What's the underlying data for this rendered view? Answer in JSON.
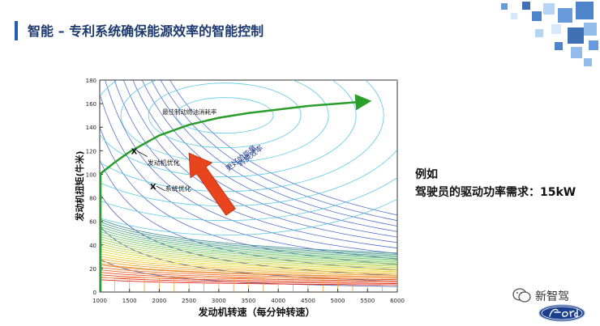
{
  "slide": {
    "title": "智能 – 专利系统确保能源效率的智能控制",
    "accent_color": "#1f5fb4",
    "example_heading": "例如",
    "example_text": "驾驶员的驱动功率需求：15kW",
    "watermark_text": "新智驾",
    "wechat_icon": "wechat-icon",
    "logo": "ford-logo"
  },
  "chart_data": {
    "type": "contour",
    "xlabel": "发动机转速（每分钟转速）",
    "ylabel": "发动机扭矩(牛米)",
    "xlim": [
      1000,
      6000
    ],
    "ylim": [
      0,
      180
    ],
    "x_ticks": [
      "1000",
      "1500",
      "2000",
      "2500",
      "3000",
      "3500",
      "4000",
      "4500",
      "5000",
      "5500",
      "6000"
    ],
    "y_ticks": [
      "0",
      "20",
      "40",
      "60",
      "80",
      "100",
      "120",
      "140",
      "160",
      "180"
    ],
    "annotations": {
      "optimal_line": "最佳制动燃油消耗率",
      "engine_opt": "发动机优化",
      "system_opt": "系统优化",
      "efficiency_text_1": "更好的能量",
      "efficiency_text_2": "转换效率",
      "marker": "X"
    },
    "optimal_curve": [
      {
        "x": 1000,
        "y": 100
      },
      {
        "x": 1250,
        "y": 110
      },
      {
        "x": 1500,
        "y": 119
      },
      {
        "x": 2000,
        "y": 133
      },
      {
        "x": 2500,
        "y": 142
      },
      {
        "x": 3000,
        "y": 148
      },
      {
        "x": 3500,
        "y": 152
      },
      {
        "x": 4000,
        "y": 155
      },
      {
        "x": 4500,
        "y": 158
      },
      {
        "x": 5000,
        "y": 160
      },
      {
        "x": 5500,
        "y": 162
      }
    ],
    "vertical_line": {
      "x": 1000,
      "y_from": 0,
      "y_to": 100
    },
    "engine_opt_point": {
      "x": 1580,
      "y": 120
    },
    "system_opt_point": {
      "x": 1900,
      "y": 90
    },
    "efficiency_arrow": {
      "from": {
        "x": 3200,
        "y": 68
      },
      "to": {
        "x": 2500,
        "y": 118
      }
    }
  }
}
